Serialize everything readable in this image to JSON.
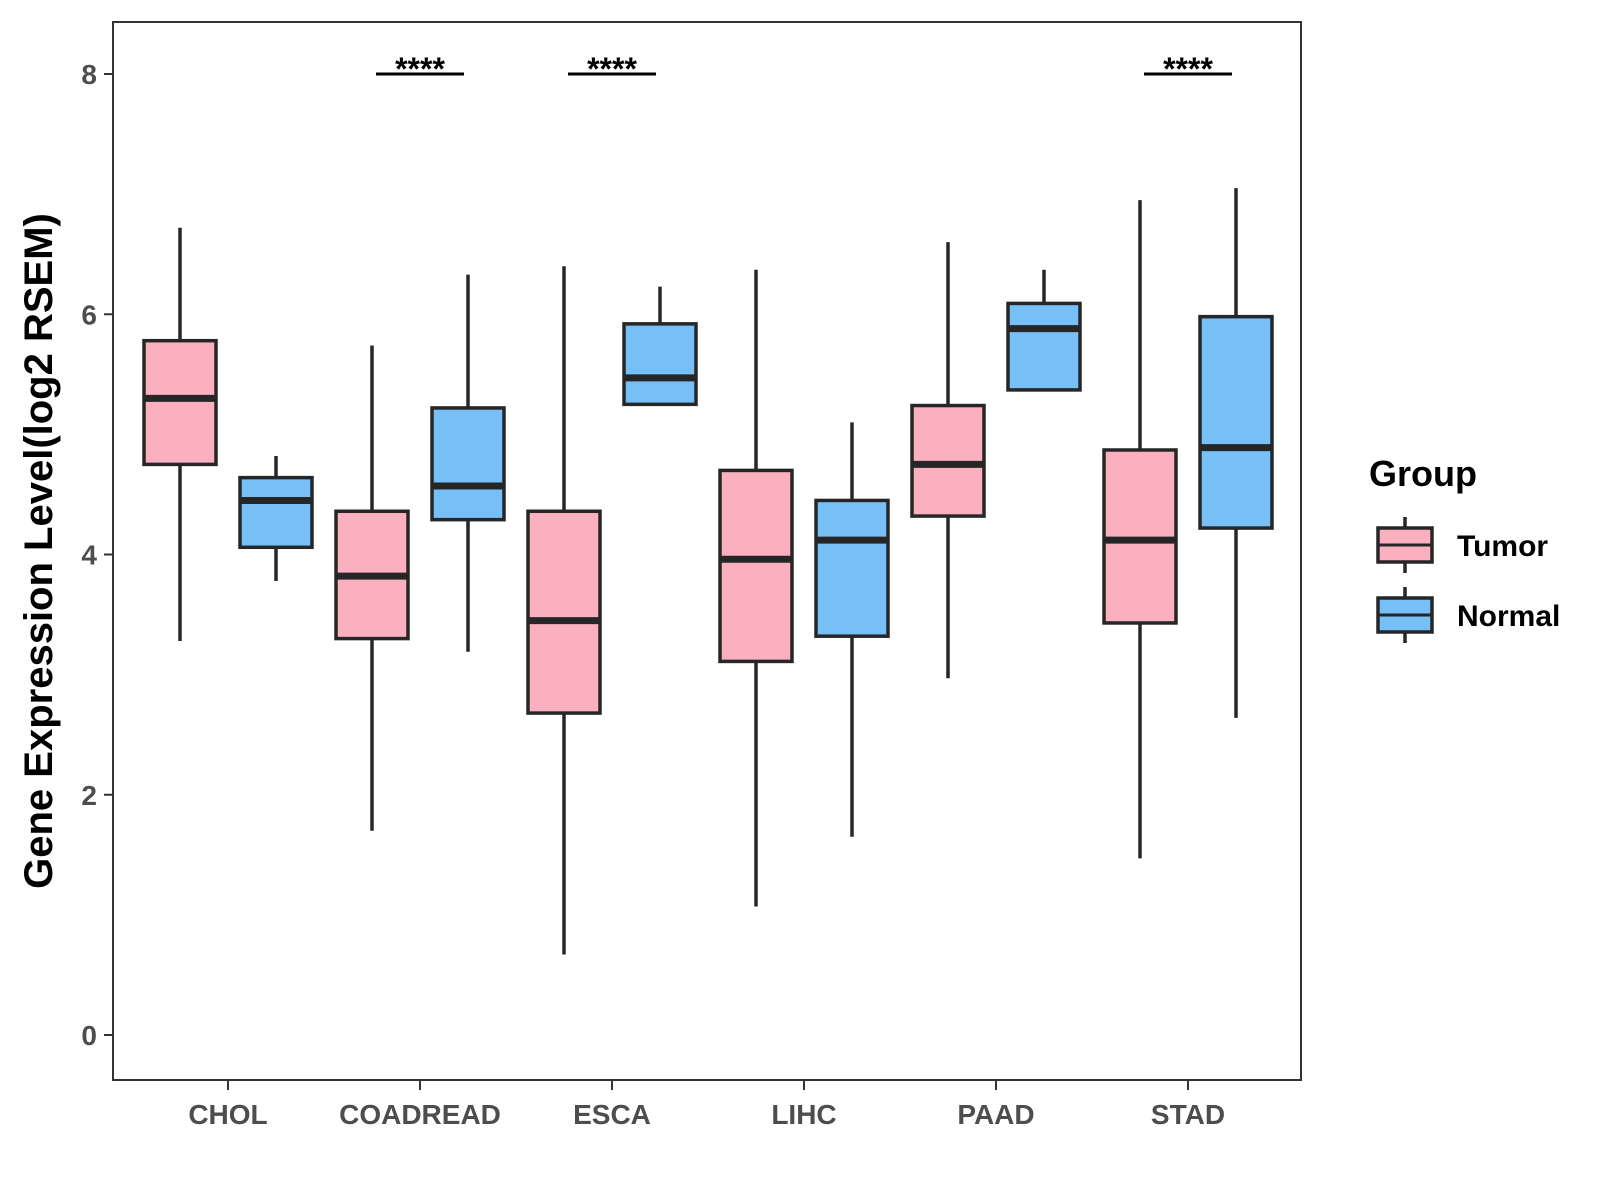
{
  "chart_data": {
    "type": "boxplot",
    "title": "",
    "xlabel": "",
    "ylabel": "Gene Expression Level(log2 RSEM)",
    "ylim": [
      -0.4,
      8.4
    ],
    "yticks": [
      0,
      2,
      4,
      6,
      8
    ],
    "grid": false,
    "categories": [
      "CHOL",
      "COADREAD",
      "ESCA",
      "LIHC",
      "PAAD",
      "STAD"
    ],
    "legend": {
      "title": "Group",
      "position": "right",
      "entries": [
        {
          "name": "Tumor",
          "color": "#fbb0c0"
        },
        {
          "name": "Normal",
          "color": "#76bff7"
        }
      ]
    },
    "series": [
      {
        "name": "Tumor",
        "color": "#fbb0c0",
        "boxes": [
          {
            "category": "CHOL",
            "min": 3.28,
            "q1": 4.75,
            "median": 5.3,
            "q3": 5.78,
            "max": 6.72
          },
          {
            "category": "COADREAD",
            "min": 1.7,
            "q1": 3.3,
            "median": 3.82,
            "q3": 4.36,
            "max": 5.74
          },
          {
            "category": "ESCA",
            "min": 0.67,
            "q1": 2.68,
            "median": 3.45,
            "q3": 4.36,
            "max": 6.4
          },
          {
            "category": "LIHC",
            "min": 1.07,
            "q1": 3.11,
            "median": 3.96,
            "q3": 4.7,
            "max": 6.37
          },
          {
            "category": "PAAD",
            "min": 2.97,
            "q1": 4.32,
            "median": 4.75,
            "q3": 5.24,
            "max": 6.6
          },
          {
            "category": "STAD",
            "min": 1.47,
            "q1": 3.43,
            "median": 4.12,
            "q3": 4.87,
            "max": 6.95
          }
        ]
      },
      {
        "name": "Normal",
        "color": "#76bff7",
        "boxes": [
          {
            "category": "CHOL",
            "min": 3.78,
            "q1": 4.06,
            "median": 4.45,
            "q3": 4.64,
            "max": 4.82
          },
          {
            "category": "COADREAD",
            "min": 3.19,
            "q1": 4.29,
            "median": 4.57,
            "q3": 5.22,
            "max": 6.33
          },
          {
            "category": "ESCA",
            "min": 5.25,
            "q1": 5.25,
            "median": 5.47,
            "q3": 5.92,
            "max": 6.23
          },
          {
            "category": "LIHC",
            "min": 1.65,
            "q1": 3.32,
            "median": 4.12,
            "q3": 4.45,
            "max": 5.1
          },
          {
            "category": "PAAD",
            "min": 5.37,
            "q1": 5.37,
            "median": 5.88,
            "q3": 6.09,
            "max": 6.37
          },
          {
            "category": "STAD",
            "min": 2.64,
            "q1": 4.22,
            "median": 4.89,
            "q3": 5.98,
            "max": 7.05
          }
        ]
      }
    ],
    "annotations": [
      {
        "category": "COADREAD",
        "label": "****",
        "y": 8.0
      },
      {
        "category": "ESCA",
        "label": "****",
        "y": 8.0
      },
      {
        "category": "STAD",
        "label": "****",
        "y": 8.0
      }
    ]
  }
}
